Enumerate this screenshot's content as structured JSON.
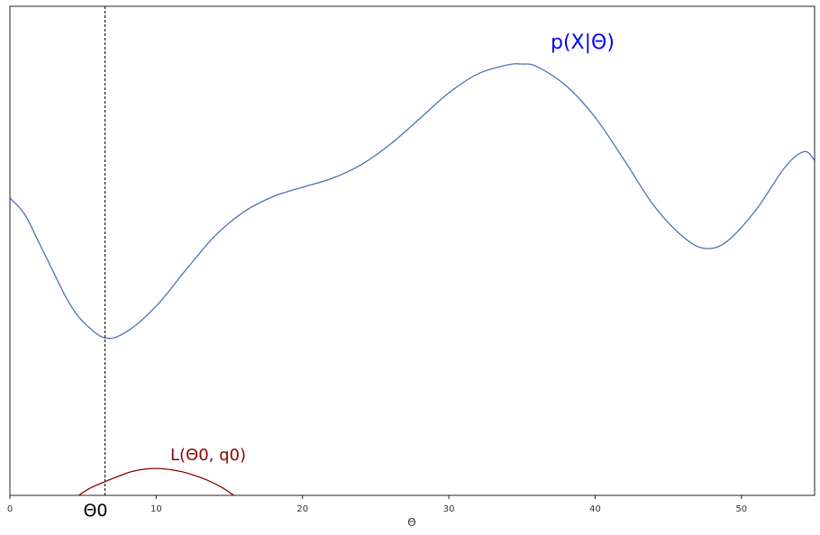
{
  "chart_data": {
    "type": "line",
    "title": "",
    "xlabel": "Θ",
    "ylabel": "",
    "xlim": [
      0,
      55
    ],
    "ylim": [
      0,
      1
    ],
    "grid": false,
    "y_ticks_shown": false,
    "x_ticks": [
      0,
      10,
      20,
      30,
      40,
      50
    ],
    "x_tick_labels": [
      "0",
      "10",
      "20",
      "30",
      "40",
      "50"
    ],
    "series": [
      {
        "label": "p(X|Θ)",
        "color": "#4c72b0",
        "label_color": "#0000ff",
        "x": [
          0,
          1,
          2,
          3,
          4,
          5,
          6.5,
          8,
          10,
          12,
          14,
          16,
          18,
          20,
          22,
          24,
          26,
          28,
          30,
          32,
          34,
          35,
          36,
          38,
          40,
          42,
          44,
          46,
          47.5,
          49,
          51,
          53,
          54.3,
          55
        ],
        "y": [
          0.608,
          0.575,
          0.516,
          0.455,
          0.396,
          0.355,
          0.322,
          0.335,
          0.387,
          0.46,
          0.53,
          0.58,
          0.611,
          0.63,
          0.648,
          0.676,
          0.718,
          0.77,
          0.823,
          0.862,
          0.88,
          0.882,
          0.877,
          0.838,
          0.773,
          0.685,
          0.593,
          0.529,
          0.505,
          0.519,
          0.584,
          0.672,
          0.703,
          0.685
        ]
      },
      {
        "label": "L(Θ0, q0)",
        "color": "#8b0000",
        "label_color": "#8b0000",
        "x": [
          4.7,
          5.5,
          6.5,
          7.5,
          8.5,
          10,
          11.5,
          12.5,
          13.5,
          14.5,
          15.3
        ],
        "y": [
          0,
          0.015,
          0.028,
          0.04,
          0.05,
          0.055,
          0.05,
          0.042,
          0.031,
          0.016,
          0
        ]
      }
    ],
    "annotations": {
      "theta0_label": "Θ0",
      "theta0_x": 6.5
    }
  }
}
